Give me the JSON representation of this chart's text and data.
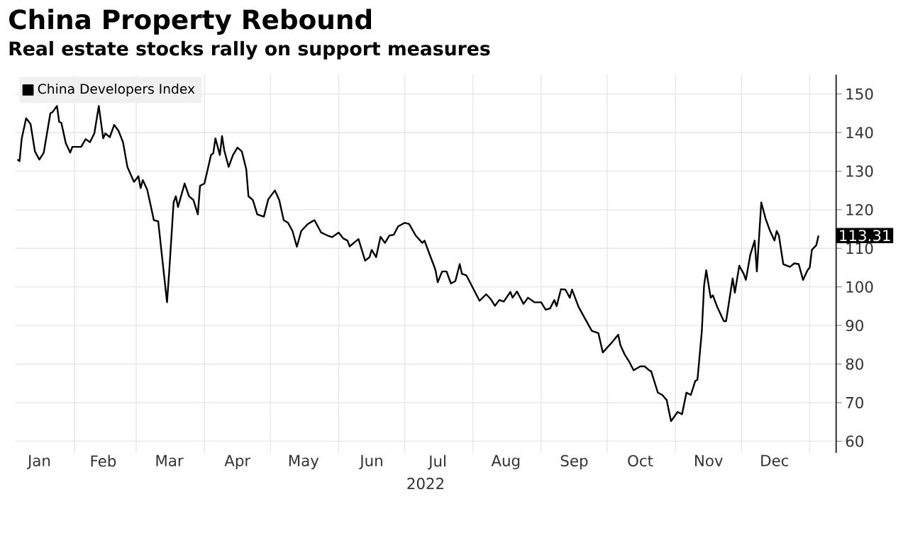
{
  "chart_data": {
    "type": "line",
    "title": "China Property Rebound",
    "subtitle": "Real estate stocks rally on support measures",
    "xlabel": "2022",
    "x": [
      "2022-01-06",
      "2022-01-07",
      "2022-01-08",
      "2022-01-10",
      "2022-01-12",
      "2022-01-14",
      "2022-01-16",
      "2022-01-18",
      "2022-01-21",
      "2022-01-22",
      "2022-01-24",
      "2022-01-25",
      "2022-01-26",
      "2022-01-28",
      "2022-01-30",
      "2022-01-31",
      "2022-02-04",
      "2022-02-06",
      "2022-02-08",
      "2022-02-10",
      "2022-02-12",
      "2022-02-14",
      "2022-02-15",
      "2022-02-17",
      "2022-02-19",
      "2022-02-21",
      "2022-02-23",
      "2022-02-25",
      "2022-02-28",
      "2022-03-02",
      "2022-03-03",
      "2022-03-04",
      "2022-03-06",
      "2022-03-08",
      "2022-03-09",
      "2022-03-11",
      "2022-03-13",
      "2022-03-15",
      "2022-03-16",
      "2022-03-18",
      "2022-03-19",
      "2022-03-20",
      "2022-03-23",
      "2022-03-25",
      "2022-03-27",
      "2022-03-29",
      "2022-03-30",
      "2022-04-01",
      "2022-04-04",
      "2022-04-05",
      "2022-04-06",
      "2022-04-08",
      "2022-04-09",
      "2022-04-10",
      "2022-04-12",
      "2022-04-14",
      "2022-04-16",
      "2022-04-18",
      "2022-04-20",
      "2022-04-21",
      "2022-04-23",
      "2022-04-25",
      "2022-04-28",
      "2022-04-30",
      "2022-05-03",
      "2022-05-05",
      "2022-05-07",
      "2022-05-09",
      "2022-05-11",
      "2022-05-13",
      "2022-05-15",
      "2022-05-18",
      "2022-05-20",
      "2022-05-21",
      "2022-05-24",
      "2022-05-27",
      "2022-05-29",
      "2022-06-01",
      "2022-06-03",
      "2022-06-05",
      "2022-06-06",
      "2022-06-10",
      "2022-06-13",
      "2022-06-15",
      "2022-06-16",
      "2022-06-18",
      "2022-06-20",
      "2022-06-22",
      "2022-06-24",
      "2022-06-26",
      "2022-06-28",
      "2022-07-01",
      "2022-07-03",
      "2022-07-06",
      "2022-07-09",
      "2022-07-10",
      "2022-07-12",
      "2022-07-14",
      "2022-07-15",
      "2022-07-16",
      "2022-07-18",
      "2022-07-20",
      "2022-07-22",
      "2022-07-24",
      "2022-07-26",
      "2022-07-27",
      "2022-07-29",
      "2022-08-01",
      "2022-08-04",
      "2022-08-07",
      "2022-08-09",
      "2022-08-11",
      "2022-08-13",
      "2022-08-15",
      "2022-08-18",
      "2022-08-19",
      "2022-08-21",
      "2022-08-24",
      "2022-08-26",
      "2022-08-29",
      "2022-09-01",
      "2022-09-03",
      "2022-09-05",
      "2022-09-07",
      "2022-09-08",
      "2022-09-10",
      "2022-09-12",
      "2022-09-14",
      "2022-09-15",
      "2022-09-18",
      "2022-09-21",
      "2022-09-24",
      "2022-09-27",
      "2022-09-29",
      "2022-10-03",
      "2022-10-06",
      "2022-10-07",
      "2022-10-09",
      "2022-10-11",
      "2022-10-13",
      "2022-10-16",
      "2022-10-18",
      "2022-10-20",
      "2022-10-21",
      "2022-10-24",
      "2022-10-26",
      "2022-10-28",
      "2022-10-30",
      "2022-11-02",
      "2022-11-04",
      "2022-11-06",
      "2022-11-08",
      "2022-11-10",
      "2022-11-11",
      "2022-11-13",
      "2022-11-14",
      "2022-11-15",
      "2022-11-17",
      "2022-11-18",
      "2022-11-20",
      "2022-11-23",
      "2022-11-24",
      "2022-11-26",
      "2022-11-27",
      "2022-11-28",
      "2022-11-30",
      "2022-12-02",
      "2022-12-03",
      "2022-12-05",
      "2022-12-07",
      "2022-12-08",
      "2022-12-10",
      "2022-12-12",
      "2022-12-14",
      "2022-12-16",
      "2022-12-17",
      "2022-12-18",
      "2022-12-20",
      "2022-12-23",
      "2022-12-25",
      "2022-12-27",
      "2022-12-29",
      "2022-12-31",
      "2023-01-01",
      "2023-01-02",
      "2023-01-04",
      "2023-01-05"
    ],
    "series": [
      {
        "name": "China Developers Index",
        "color": "#000000",
        "values": [
          133.0,
          132.6,
          138.5,
          143.7,
          142.2,
          135.1,
          133.0,
          134.8,
          145.0,
          145.3,
          146.9,
          142.8,
          142.5,
          137.3,
          134.8,
          136.3,
          136.3,
          138.3,
          137.5,
          139.8,
          146.9,
          138.5,
          139.8,
          138.8,
          142.0,
          140.4,
          137.5,
          131.1,
          127.2,
          128.7,
          125.6,
          127.7,
          125.2,
          120.0,
          117.3,
          117.0,
          106.5,
          96.0,
          104.0,
          121.9,
          123.5,
          120.7,
          126.8,
          123.5,
          122.5,
          118.8,
          126.2,
          126.8,
          134.2,
          134.6,
          138.5,
          134.2,
          139.1,
          135.4,
          131.1,
          134.2,
          136.1,
          135.1,
          130.5,
          123.5,
          122.5,
          118.8,
          118.2,
          122.7,
          125.0,
          122.5,
          117.3,
          116.6,
          114.5,
          110.4,
          114.5,
          116.3,
          117.0,
          117.3,
          114.1,
          113.3,
          112.9,
          114.1,
          112.6,
          112.0,
          110.5,
          112.4,
          106.8,
          107.7,
          109.6,
          107.7,
          113.0,
          111.4,
          113.3,
          113.5,
          115.7,
          116.6,
          116.3,
          113.3,
          111.4,
          112.0,
          108.9,
          105.9,
          104.3,
          101.2,
          104.0,
          104.0,
          100.9,
          101.5,
          105.9,
          103.4,
          103.0,
          99.7,
          96.4,
          98.1,
          96.9,
          95.1,
          96.6,
          96.2,
          98.7,
          97.2,
          98.8,
          95.6,
          97.2,
          96.0,
          96.0,
          94.1,
          94.4,
          96.6,
          95.0,
          99.4,
          99.3,
          97.2,
          99.3,
          94.8,
          91.7,
          88.6,
          88.0,
          83.0,
          85.5,
          87.6,
          84.9,
          82.4,
          80.6,
          78.4,
          79.4,
          79.4,
          78.4,
          78.1,
          72.6,
          72.0,
          70.7,
          65.2,
          67.6,
          67.0,
          72.6,
          72.0,
          75.6,
          75.9,
          88.6,
          100.3,
          104.3,
          97.2,
          97.8,
          94.8,
          91.1,
          91.1,
          98.5,
          102.2,
          98.5,
          105.5,
          103.4,
          101.8,
          108.3,
          112.0,
          104.0,
          121.9,
          117.6,
          114.5,
          112.0,
          114.5,
          113.3,
          105.9,
          105.2,
          106.1,
          105.9,
          101.8,
          104.3,
          105.0,
          109.6,
          110.8,
          113.31
        ],
        "value_labels": [
          null,
          null,
          null,
          null,
          null,
          null,
          null,
          null,
          null,
          null,
          null,
          null,
          null,
          null,
          null,
          null,
          null,
          null,
          null,
          null,
          null,
          null,
          null,
          null,
          null,
          null,
          null,
          null,
          null,
          null,
          null,
          null,
          null,
          null,
          null,
          null,
          null,
          null,
          null,
          null,
          null,
          null,
          null,
          null,
          null,
          null,
          null,
          null,
          null,
          null,
          null,
          null,
          null,
          null,
          null,
          null,
          null,
          null,
          null,
          null,
          null,
          null,
          null,
          null,
          null,
          null,
          null,
          null,
          null,
          null,
          null,
          null,
          null,
          null,
          null,
          null,
          null,
          null,
          null,
          null,
          null,
          null,
          null,
          null,
          null,
          null,
          null,
          null,
          null,
          null,
          null,
          null,
          null,
          null,
          null,
          null,
          null,
          null,
          null,
          null,
          null,
          null,
          null,
          null,
          null,
          null,
          null,
          null,
          null,
          null,
          null,
          null,
          null,
          null,
          null,
          null,
          null,
          null,
          null,
          null,
          null,
          null,
          null,
          null,
          null,
          null,
          null,
          null,
          null,
          null,
          null,
          null,
          null,
          null,
          null,
          null,
          null,
          null,
          null,
          null,
          null,
          null,
          null,
          null,
          null,
          null,
          null,
          null,
          null,
          null,
          null,
          null,
          null,
          null,
          null,
          null,
          null,
          null,
          null,
          null,
          null,
          null,
          null,
          null,
          null,
          null,
          null,
          null,
          null,
          null,
          null,
          null,
          null,
          null,
          null,
          null,
          null,
          null,
          null,
          null,
          null,
          null,
          null,
          null,
          null,
          null,
          "113.31"
        ]
      }
    ],
    "xlim": [
      "2022-01-05",
      "2023-01-13"
    ],
    "xticks": [
      {
        "value": "2022-01-16",
        "label": "Jan"
      },
      {
        "value": "2022-02-14",
        "label": "Feb"
      },
      {
        "value": "2022-03-16",
        "label": "Mar"
      },
      {
        "value": "2022-04-16",
        "label": "Apr"
      },
      {
        "value": "2022-05-16",
        "label": "May"
      },
      {
        "value": "2022-06-16",
        "label": "Jun"
      },
      {
        "value": "2022-07-16",
        "label": "Jul"
      },
      {
        "value": "2022-08-16",
        "label": "Aug"
      },
      {
        "value": "2022-09-16",
        "label": "Sep"
      },
      {
        "value": "2022-10-16",
        "label": "Oct"
      },
      {
        "value": "2022-11-16",
        "label": "Nov"
      },
      {
        "value": "2022-12-16",
        "label": "Dec"
      },
      {
        "value": "2022-02-01",
        "label": null
      },
      {
        "value": "2022-03-01",
        "label": null
      },
      {
        "value": "2022-04-01",
        "label": null
      },
      {
        "value": "2022-05-01",
        "label": null
      },
      {
        "value": "2022-06-01",
        "label": null
      },
      {
        "value": "2022-07-01",
        "label": null
      },
      {
        "value": "2022-08-01",
        "label": null
      },
      {
        "value": "2022-09-01",
        "label": null
      },
      {
        "value": "2022-10-01",
        "label": null
      },
      {
        "value": "2022-11-01",
        "label": null
      },
      {
        "value": "2022-12-01",
        "label": null
      },
      {
        "value": "2023-01-01",
        "label": null
      }
    ],
    "ylim": [
      57,
      155
    ],
    "yticks": [
      60,
      70,
      80,
      90,
      100,
      110,
      120,
      130,
      140,
      150
    ],
    "grid": true,
    "legend": "top left"
  }
}
